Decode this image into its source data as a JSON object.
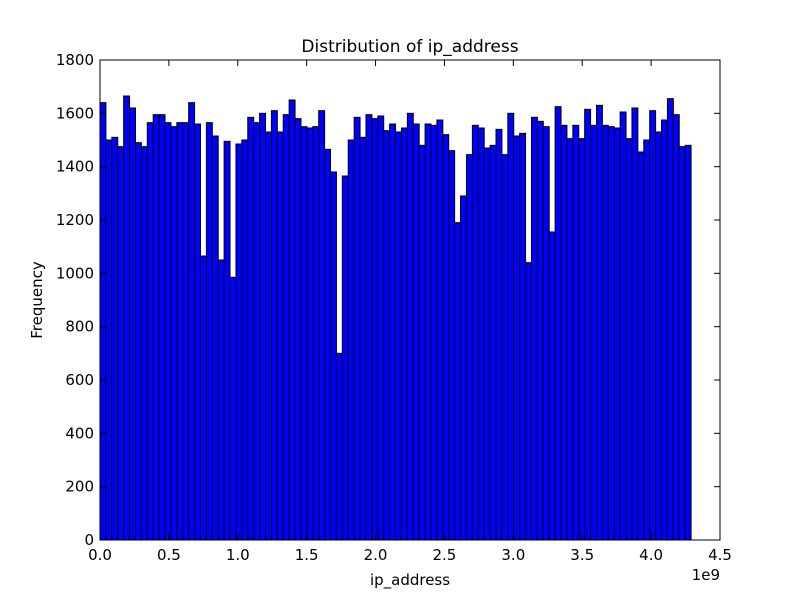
{
  "chart_data": {
    "type": "bar",
    "title": "Distribution of ip_address",
    "xlabel": "ip_address",
    "ylabel": "Frequency",
    "x_offset_label": "1e9",
    "xlim": [
      0.0,
      4.5
    ],
    "ylim": [
      0,
      1800
    ],
    "x_ticks": [
      "0.0",
      "0.5",
      "1.0",
      "1.5",
      "2.0",
      "2.5",
      "3.0",
      "3.5",
      "4.0",
      "4.5"
    ],
    "y_ticks": [
      "0",
      "200",
      "400",
      "600",
      "800",
      "1000",
      "1200",
      "1400",
      "1600",
      "1800"
    ],
    "bar_color": "#0000ff",
    "edge_color": "#000000",
    "bin_width": 0.0429,
    "bin_start": 0.0,
    "values": [
      1640,
      1500,
      1510,
      1475,
      1665,
      1620,
      1490,
      1475,
      1565,
      1595,
      1595,
      1565,
      1550,
      1565,
      1565,
      1640,
      1560,
      1065,
      1565,
      1515,
      1050,
      1495,
      985,
      1485,
      1500,
      1585,
      1565,
      1600,
      1530,
      1610,
      1530,
      1595,
      1650,
      1580,
      1550,
      1545,
      1550,
      1610,
      1465,
      1380,
      700,
      1365,
      1500,
      1585,
      1510,
      1595,
      1580,
      1590,
      1535,
      1560,
      1530,
      1545,
      1600,
      1560,
      1480,
      1560,
      1555,
      1575,
      1520,
      1460,
      1190,
      1290,
      1445,
      1555,
      1545,
      1470,
      1480,
      1540,
      1445,
      1600,
      1515,
      1525,
      1040,
      1585,
      1570,
      1550,
      1155,
      1625,
      1555,
      1505,
      1555,
      1505,
      1615,
      1555,
      1630,
      1555,
      1550,
      1545,
      1605,
      1505,
      1620,
      1455,
      1500,
      1610,
      1530,
      1575,
      1655,
      1595,
      1475,
      1480
    ]
  }
}
